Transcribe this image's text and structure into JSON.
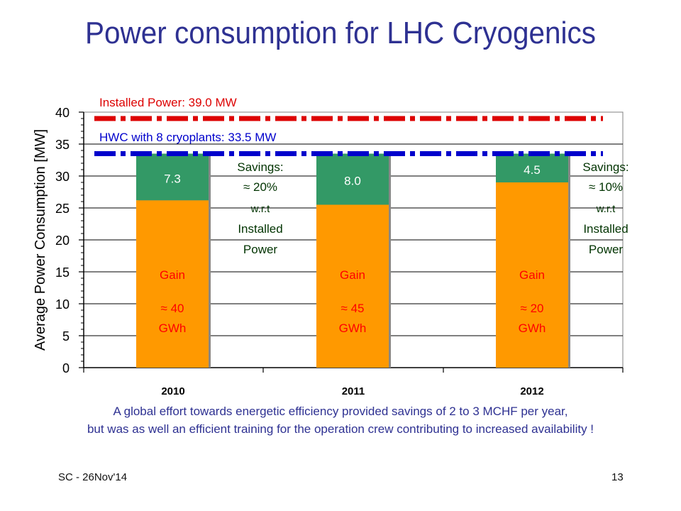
{
  "slide": {
    "title": "Power consumption for LHC Cryogenics",
    "caption_line1": "A global effort towards energetic efficiency provided savings of 2 to 3 MCHF per year,",
    "caption_line2": "but was as well an efficient training for the operation crew contributing to increased availability !",
    "footer_left": "SC - 26Nov'14",
    "footer_right": "13"
  },
  "colors": {
    "title": "#2e3192",
    "consumption": "#ff9900",
    "savings": "#339966",
    "installed_line": "#dd0000",
    "hwc_line": "#0000cc",
    "gain_text": "#ff0000",
    "savings_label_text": "#ffffff",
    "note_text": "#003300"
  },
  "chart_data": {
    "type": "bar",
    "stacked": true,
    "categories": [
      "2010",
      "2011",
      "2012"
    ],
    "ylabel": "Average Power Consumption  [MW]",
    "ylim": [
      0,
      40
    ],
    "yticks": [
      0,
      5,
      10,
      15,
      20,
      25,
      30,
      35,
      40
    ],
    "series": [
      {
        "values": [
          26.2,
          25.5,
          29.0
        ]
      },
      {
        "values": [
          7.3,
          8.0,
          4.5
        ]
      }
    ],
    "segment_labels": [
      "7.3",
      "8.0",
      "4.5"
    ],
    "reference_lines": [
      {
        "label": "Installed Power: 39.0 MW",
        "value": 39.0
      },
      {
        "label": "HWC with 8 cryoplants: 33.5 MW",
        "value": 33.5
      }
    ],
    "gain_annotations": [
      {
        "title": "Gain",
        "line1": "≈ 40",
        "line2": "GWh"
      },
      {
        "title": "Gain",
        "line1": "≈ 45",
        "line2": "GWh"
      },
      {
        "title": "Gain",
        "line1": "≈ 20",
        "line2": "GWh"
      }
    ],
    "savings_notes": [
      {
        "lines": [
          "Savings:",
          "≈ 20%",
          "w.r.t",
          "Installed",
          "Power"
        ]
      },
      {
        "lines": [
          "Savings:",
          "≈ 10%",
          "w.r.t",
          "Installed",
          "Power"
        ]
      }
    ]
  }
}
